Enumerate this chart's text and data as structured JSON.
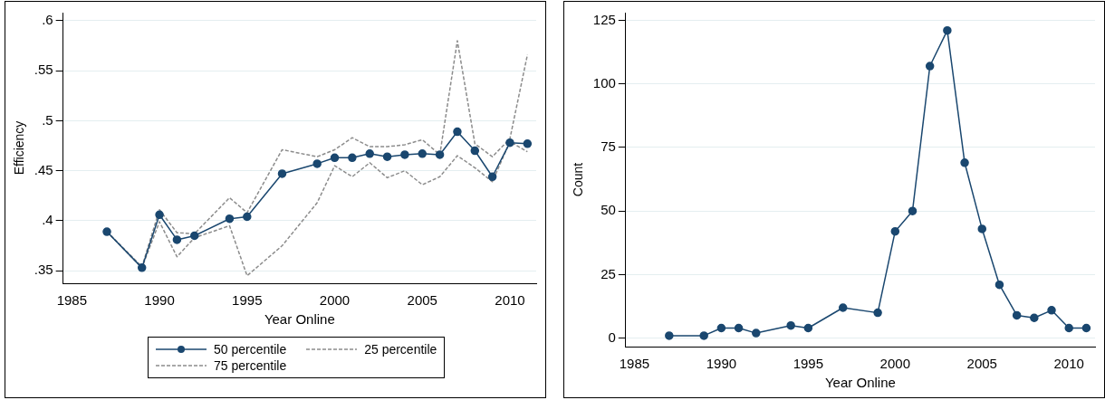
{
  "chart_data": [
    {
      "type": "line",
      "xlabel": "Year Online",
      "ylabel": "Efficiency",
      "x": [
        1987,
        1989,
        1990,
        1991,
        1992,
        1994,
        1995,
        1997,
        1999,
        2000,
        2001,
        2002,
        2003,
        2004,
        2005,
        2006,
        2007,
        2008,
        2009,
        2010,
        2011
      ],
      "series": [
        {
          "name": "50 percentile",
          "color": "#1a476f",
          "marker": "circle",
          "line_style": "solid",
          "values": [
            0.389,
            0.353,
            0.406,
            0.381,
            0.385,
            0.402,
            0.404,
            0.447,
            0.457,
            0.463,
            0.463,
            0.467,
            0.464,
            0.466,
            0.467,
            0.466,
            0.489,
            0.47,
            0.444,
            0.478,
            0.477
          ]
        },
        {
          "name": "25 percentile",
          "color": "#8c8c8c",
          "marker": "none",
          "line_style": "dashed",
          "values": [
            0.389,
            0.353,
            0.399,
            0.364,
            0.383,
            0.395,
            0.345,
            0.375,
            0.418,
            0.455,
            0.444,
            0.458,
            0.443,
            0.45,
            0.436,
            0.444,
            0.465,
            0.453,
            0.439,
            0.479,
            0.469
          ]
        },
        {
          "name": "75 percentile",
          "color": "#8c8c8c",
          "marker": "none",
          "line_style": "dashed",
          "values": [
            0.389,
            0.354,
            0.411,
            0.388,
            0.387,
            0.423,
            0.408,
            0.471,
            0.464,
            0.471,
            0.483,
            0.474,
            0.474,
            0.476,
            0.481,
            0.466,
            0.58,
            0.477,
            0.464,
            0.482,
            0.566
          ]
        }
      ],
      "xlim": [
        1984.5,
        2011.5
      ],
      "xticks": [
        1985,
        1990,
        1995,
        2000,
        2005,
        2010
      ],
      "ylim": [
        0.3375,
        0.608
      ],
      "yticks": [
        {
          "value": 0.35,
          "label": ".35"
        },
        {
          "value": 0.4,
          "label": ".4"
        },
        {
          "value": 0.45,
          "label": ".45"
        },
        {
          "value": 0.5,
          "label": ".5"
        },
        {
          "value": 0.55,
          "label": ".55"
        },
        {
          "value": 0.6,
          "label": ".6"
        }
      ],
      "grid": "y",
      "legend": "bottom"
    },
    {
      "type": "line",
      "xlabel": "Year Online",
      "ylabel": "Count",
      "color": "#1a476f",
      "marker": "circle",
      "x": [
        1987,
        1989,
        1990,
        1991,
        1992,
        1994,
        1995,
        1997,
        1999,
        2000,
        2001,
        2002,
        2003,
        2004,
        2005,
        2006,
        2007,
        2008,
        2009,
        2010,
        2011
      ],
      "values": [
        1,
        1,
        4,
        4,
        2,
        5,
        4,
        12,
        10,
        42,
        50,
        107,
        121,
        69,
        43,
        21,
        9,
        8,
        11,
        4,
        4
      ],
      "xlim": [
        1984.5,
        2011.5
      ],
      "xticks": [
        1985,
        1990,
        1995,
        2000,
        2005,
        2010
      ],
      "ylim": [
        -3.3,
        128
      ],
      "yticks": [
        0,
        25,
        50,
        75,
        100,
        125
      ],
      "grid": "y"
    }
  ]
}
